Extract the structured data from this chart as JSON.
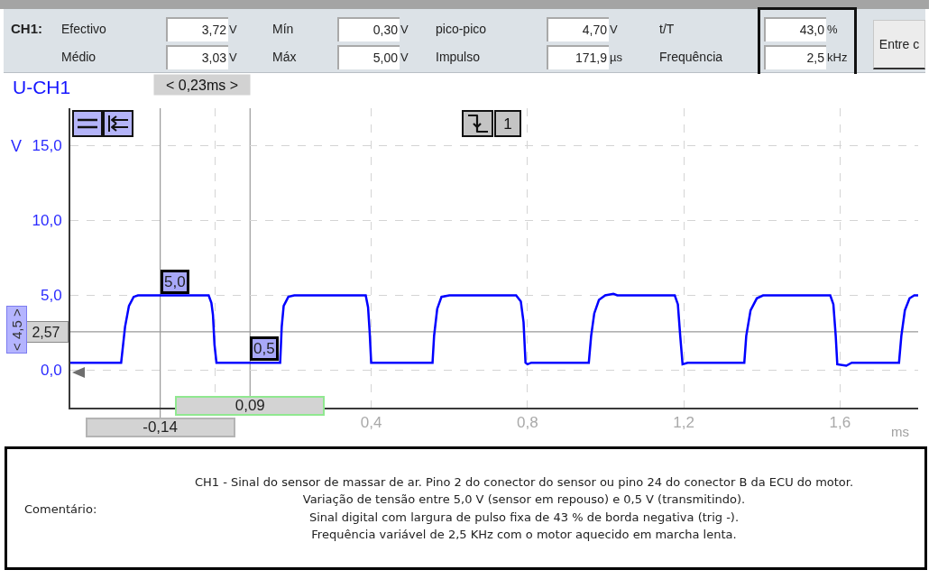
{
  "chart_data": [
    {
      "type": "other",
      "title": "CH1:",
      "annotations": [
        "Efectivo",
        "3,72",
        "V",
        "Mín",
        "0,30",
        "V",
        "pico-pico",
        "4,70",
        "V",
        "t/T",
        "43,0",
        "%",
        "Médio",
        "3,03",
        "V",
        "Máx",
        "5,00",
        "V",
        "Impulso",
        "171,9",
        "µs",
        "Frequência",
        "2,5",
        "kHz",
        "Entre c"
      ]
    },
    {
      "type": "line",
      "title": "U-CH1",
      "xlabel": "ms",
      "ylabel": "V",
      "color": "#0000ff",
      "x": [
        -0.37,
        -0.24,
        -0.23,
        -0.22,
        -0.208,
        -0.197,
        -0.016,
        -0.009,
        -0.005,
        -0.001,
        0.004,
        0.015,
        0.167,
        0.171,
        0.176,
        0.188,
        0.203,
        0.386,
        0.392,
        0.396,
        0.4,
        0.41,
        0.557,
        0.561,
        0.569,
        0.58,
        0.6,
        0.771,
        0.783,
        0.79,
        0.795,
        0.8,
        0.81,
        0.957,
        0.963,
        0.971,
        0.983,
        0.999,
        1.02,
        1.03,
        1.177,
        1.185,
        1.191,
        1.197,
        1.21,
        1.355,
        1.36,
        1.371,
        1.387,
        1.403,
        1.575,
        1.583,
        1.589,
        1.593,
        1.616,
        1.63,
        1.751,
        1.757,
        1.766,
        1.778,
        1.79,
        1.8
      ],
      "values": [
        0.5,
        0.5,
        2.9,
        4.3,
        4.9,
        5.0,
        5.0,
        4.5,
        3.7,
        1.7,
        0.5,
        0.5,
        0.5,
        2.9,
        4.3,
        4.9,
        5.0,
        5.0,
        4.2,
        2.6,
        0.5,
        0.5,
        0.5,
        2.3,
        4.1,
        4.9,
        5.0,
        5.0,
        4.6,
        3.2,
        0.5,
        0.4,
        0.5,
        0.5,
        2.3,
        3.8,
        4.7,
        5.0,
        5.1,
        5.0,
        5.0,
        4.4,
        2.3,
        0.4,
        0.5,
        0.5,
        2.3,
        4.0,
        4.8,
        5.0,
        5.0,
        4.4,
        2.3,
        0.4,
        0.3,
        0.5,
        0.5,
        2.3,
        4.0,
        4.8,
        5.0,
        5.0
      ],
      "xlim": [
        -0.37,
        1.8
      ],
      "ylim": [
        -2.5,
        17.5
      ],
      "xticks": [
        {
          "value": 0,
          "label": null
        },
        {
          "value": 0.4,
          "label": "0,4"
        },
        {
          "value": 0.8,
          "label": "0,8"
        },
        {
          "value": 1.2,
          "label": "1,2"
        },
        {
          "value": 1.6,
          "label": "1,6"
        }
      ],
      "yticks": [
        {
          "value": 0,
          "label": "0,0"
        },
        {
          "value": 5,
          "label": "5,0"
        },
        {
          "value": 10,
          "label": "10,0"
        },
        {
          "value": 15,
          "label": "15,0"
        }
      ],
      "grid": true,
      "ref_lines": [
        {
          "axis": "x",
          "value": -0.14,
          "label": "-0,14",
          "color": "#999999"
        },
        {
          "axis": "x",
          "value": 0.09,
          "label": "0,09",
          "color": "#999999"
        },
        {
          "axis": "y",
          "value": 2.57,
          "label": "2,57",
          "color": "#999999"
        }
      ],
      "annotations": [
        "< 0,23ms >",
        "< 4,5 >",
        {
          "text": "5,0",
          "x": -0.14,
          "y": 5.0
        },
        {
          "text": "0,5",
          "x": 0.09,
          "y": 0.5
        },
        "1"
      ]
    },
    {
      "type": "other",
      "annotations": [
        "Comentário:",
        "CH1 - Sinal do sensor de massar de ar. Pino 2 do conector do sensor ou pino 24 do conector B da ECU do motor.",
        "Variação de tensão entre 5,0 V (sensor em repouso) e 0,5 V (transmitindo).",
        "Sinal digital com largura de pulso fixa de 43 % de borda negativa (trig -).",
        "Frequência variável de 2,5 KHz com o motor aquecido em marcha lenta."
      ]
    }
  ]
}
